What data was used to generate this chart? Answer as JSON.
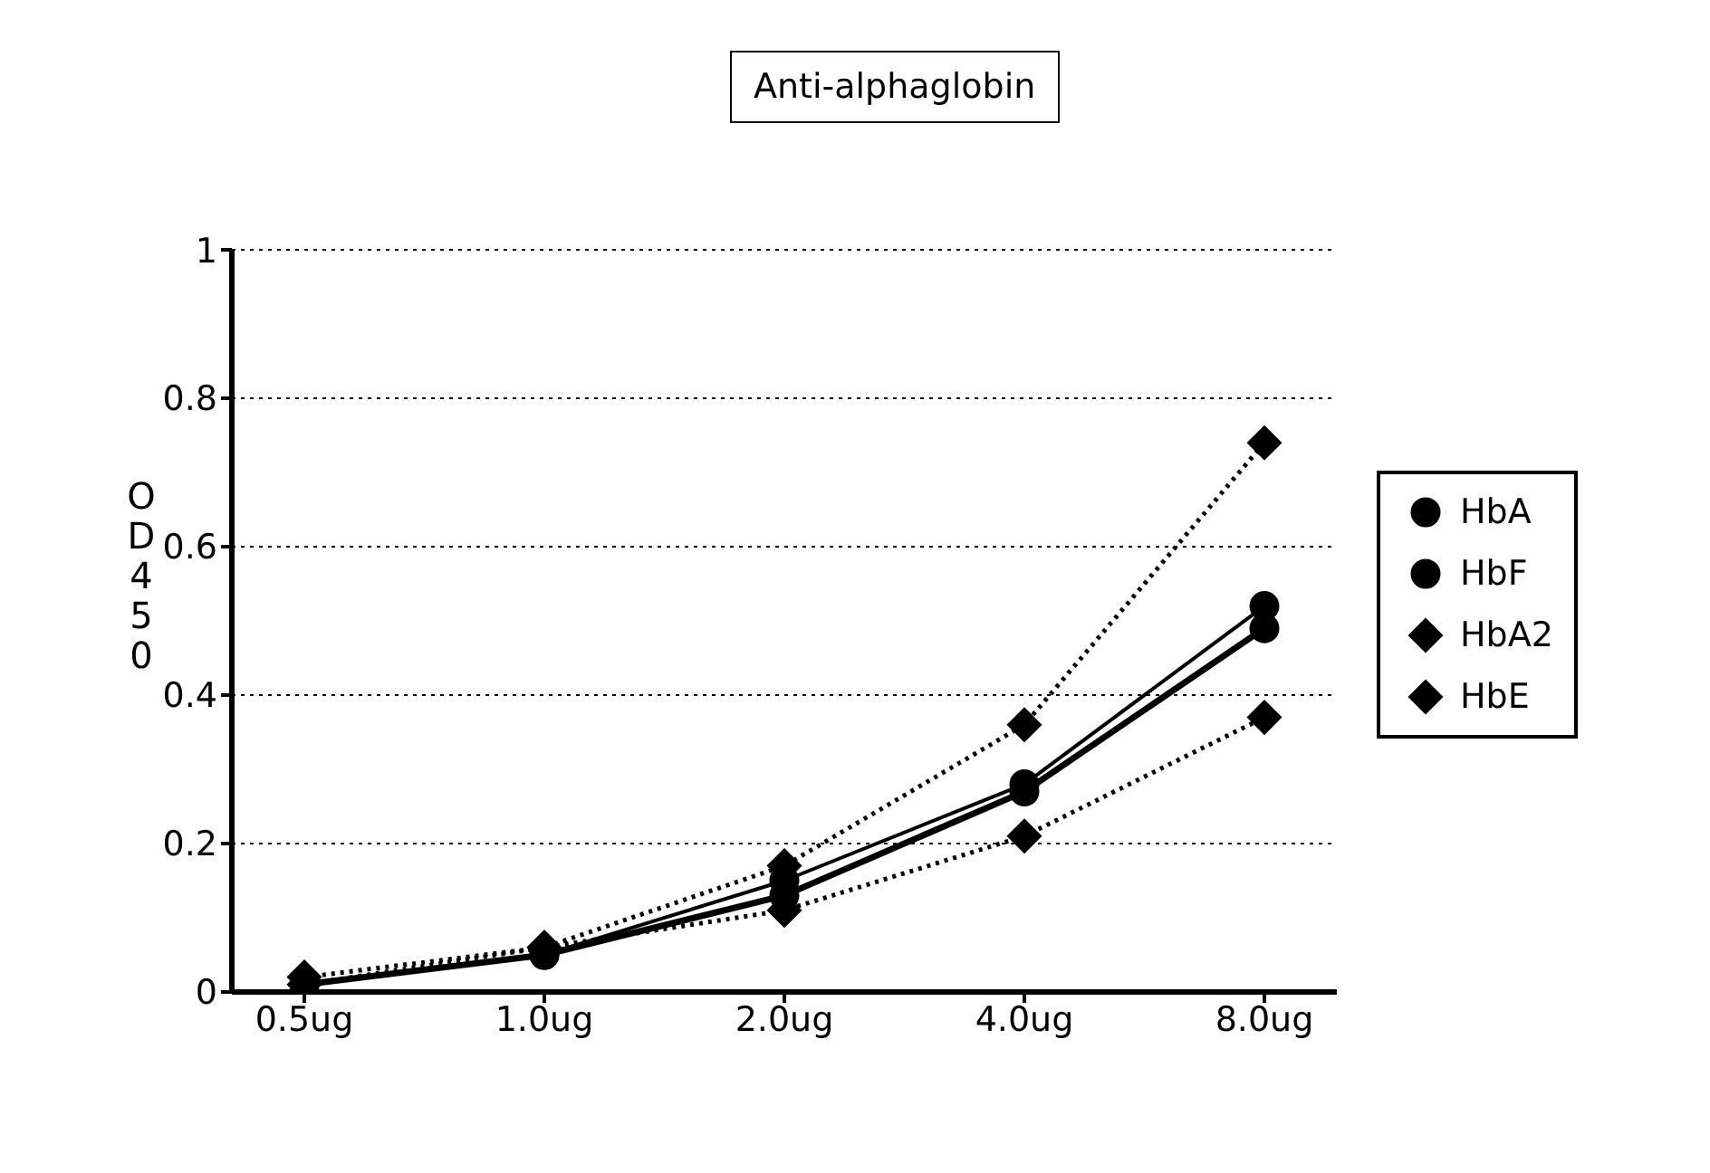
{
  "chart_data": {
    "type": "line",
    "title": "Anti-alphaglobin",
    "ylabel": "OD450",
    "categories": [
      "0.5ug",
      "1.0ug",
      "2.0ug",
      "4.0ug",
      "8.0ug"
    ],
    "series": [
      {
        "name": "HbA",
        "color": "#000000",
        "marker": "circle",
        "line_style": "solid",
        "values": [
          0.01,
          0.05,
          0.13,
          0.27,
          0.49
        ]
      },
      {
        "name": "HbF",
        "color": "#000000",
        "marker": "circle",
        "line_style": "solid",
        "values": [
          0.01,
          0.05,
          0.15,
          0.28,
          0.52
        ]
      },
      {
        "name": "HbA2",
        "color": "#000000",
        "marker": "diamond",
        "line_style": "dotted",
        "values": [
          0.02,
          0.06,
          0.11,
          0.21,
          0.37
        ]
      },
      {
        "name": "HbE",
        "color": "#000000",
        "marker": "diamond",
        "line_style": "dotted",
        "values": [
          0.01,
          0.06,
          0.17,
          0.36,
          0.74
        ]
      }
    ],
    "ylim": [
      0,
      1
    ],
    "yticks": [
      0,
      0.2,
      0.4,
      0.6,
      0.8,
      1
    ],
    "grid": "y",
    "legend": "right"
  }
}
